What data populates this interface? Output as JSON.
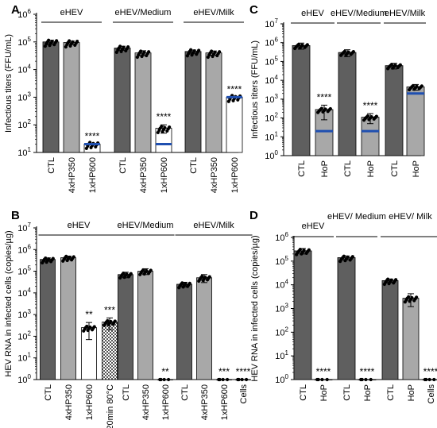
{
  "chart_data": [
    {
      "panel": "A",
      "type": "bar",
      "ylabel": "Infectious titers (FFU/mL)",
      "yscale": "log",
      "ylim": [
        10,
        1000000
      ],
      "yticks": [
        {
          "v": 10,
          "e": "1"
        },
        {
          "v": 100,
          "e": "2"
        },
        {
          "v": 1000,
          "e": "3"
        },
        {
          "v": 10000,
          "e": "4"
        },
        {
          "v": 100000,
          "e": "5"
        },
        {
          "v": 1000000,
          "e": "6"
        }
      ],
      "groups": [
        {
          "label": "eHEV",
          "bars": [
            {
              "category": "CTL",
              "value": 100000,
              "error": 15000,
              "fill": "#5f5f5f"
            },
            {
              "category": "4xHP350",
              "value": 95000,
              "error": 12000,
              "fill": "#a8a8a8"
            },
            {
              "category": "1xHP600",
              "value": 20,
              "fill": "#ffffff",
              "lod": 20,
              "sig": "****"
            }
          ]
        },
        {
          "label": "eHEV/Medium",
          "bars": [
            {
              "category": "CTL",
              "value": 60000,
              "error": 10000,
              "fill": "#5f5f5f"
            },
            {
              "category": "4xHP350",
              "value": 40000,
              "error": 8000,
              "fill": "#a8a8a8"
            },
            {
              "category": "1xHP600",
              "value": 75,
              "error": 25,
              "fill": "#ffffff",
              "lod": 20,
              "sig": "****"
            }
          ]
        },
        {
          "label": "eHEV/Milk",
          "bars": [
            {
              "category": "CTL",
              "value": 45000,
              "error": 6000,
              "fill": "#5f5f5f"
            },
            {
              "category": "4xHP350",
              "value": 40000,
              "error": 7000,
              "fill": "#a8a8a8"
            },
            {
              "category": "1xHP600",
              "value": 1000,
              "fill": "#ffffff",
              "lod": 1000,
              "sig": "****"
            }
          ]
        }
      ]
    },
    {
      "panel": "B",
      "type": "bar",
      "ylabel": "HEV RNA in infected cells (copies/µg)",
      "yscale": "log",
      "ylim": [
        1,
        10000000
      ],
      "yticks": [
        {
          "v": 1,
          "e": "0"
        },
        {
          "v": 10,
          "e": "1"
        },
        {
          "v": 100,
          "e": "2"
        },
        {
          "v": 1000,
          "e": "3"
        },
        {
          "v": 10000,
          "e": "4"
        },
        {
          "v": 100000,
          "e": "5"
        },
        {
          "v": 1000000,
          "e": "6"
        },
        {
          "v": 10000000,
          "e": "7"
        }
      ],
      "groups": [
        {
          "label": "eHEV",
          "bars": [
            {
              "category": "CTL",
              "value": 350000,
              "error": 60000,
              "fill": "#5f5f5f"
            },
            {
              "category": "4xHP350",
              "value": 420000,
              "error": 80000,
              "fill": "#a8a8a8"
            },
            {
              "category": "1xHP600",
              "value": 250,
              "error": 180,
              "fill": "#ffffff",
              "sig": "**"
            },
            {
              "category": "20min 80°C",
              "value": 450,
              "error": 250,
              "fill": "#e6e6e6",
              "pattern": "check",
              "sig": "***"
            }
          ]
        },
        {
          "label": "eHEV/Medium",
          "bars": [
            {
              "category": "CTL",
              "value": 70000,
              "error": 20000,
              "fill": "#5f5f5f"
            },
            {
              "category": "4xHP350",
              "value": 100000,
              "error": 30000,
              "fill": "#a8a8a8"
            },
            {
              "category": "1xHP600",
              "value": 1,
              "fill": "#ffffff",
              "sig": "**"
            }
          ]
        },
        {
          "label": "eHEV/Milk",
          "bars": [
            {
              "category": "CTL",
              "value": 25000,
              "error": 6000,
              "fill": "#5f5f5f"
            },
            {
              "category": "4xHP350",
              "value": 50000,
              "error": 20000,
              "fill": "#a8a8a8"
            },
            {
              "category": "1xHP600",
              "value": 1,
              "fill": "#ffffff",
              "sig": "***"
            },
            {
              "category": "Cells",
              "value": 1,
              "fill": "#ffffff",
              "sig": "****"
            }
          ]
        }
      ]
    },
    {
      "panel": "C",
      "type": "bar",
      "ylabel": "Infectious titers (FFU/mL)",
      "yscale": "log",
      "ylim": [
        1,
        10000000
      ],
      "yticks": [
        {
          "v": 1,
          "e": "0"
        },
        {
          "v": 10,
          "e": "1"
        },
        {
          "v": 100,
          "e": "2"
        },
        {
          "v": 1000,
          "e": "3"
        },
        {
          "v": 10000,
          "e": "4"
        },
        {
          "v": 100000,
          "e": "5"
        },
        {
          "v": 1000000,
          "e": "6"
        },
        {
          "v": 10000000,
          "e": "7"
        }
      ],
      "groups": [
        {
          "label": "eHEV",
          "bars": [
            {
              "category": "CTL",
              "value": 700000,
              "error": 250000,
              "fill": "#5f5f5f"
            },
            {
              "category": "HoP",
              "value": 280,
              "error": 200,
              "fill": "#a8a8a8",
              "lod": 20,
              "sig": "****"
            }
          ]
        },
        {
          "label": "eHEV/Medium",
          "bars": [
            {
              "category": "CTL",
              "value": 300000,
              "error": 120000,
              "fill": "#5f5f5f"
            },
            {
              "category": "HoP",
              "value": 110,
              "error": 60,
              "fill": "#a8a8a8",
              "lod": 20,
              "sig": "****"
            }
          ]
        },
        {
          "label": "eHEV/Milk",
          "bars": [
            {
              "category": "CTL",
              "value": 60000,
              "error": 20000,
              "fill": "#5f5f5f"
            },
            {
              "category": "HoP",
              "value": 4500,
              "error": 1500,
              "fill": "#a8a8a8",
              "lod": 2000
            }
          ]
        }
      ]
    },
    {
      "panel": "D",
      "type": "bar",
      "ylabel": "HEV RNA in infected cells (copies/µg)",
      "yscale": "log",
      "ylim": [
        1,
        1000000
      ],
      "yticks": [
        {
          "v": 1,
          "e": "0"
        },
        {
          "v": 10,
          "e": "1"
        },
        {
          "v": 100,
          "e": "2"
        },
        {
          "v": 1000,
          "e": "3"
        },
        {
          "v": 10000,
          "e": "4"
        },
        {
          "v": 100000,
          "e": "5"
        },
        {
          "v": 1000000,
          "e": "6"
        }
      ],
      "groups": [
        {
          "label": "eHEV",
          "bars": [
            {
              "category": "CTL",
              "value": 270000,
              "error": 70000,
              "fill": "#5f5f5f"
            },
            {
              "category": "HoP",
              "value": 1,
              "fill": "#a8a8a8",
              "sig": "****"
            }
          ]
        },
        {
          "label": "eHEV/ Medium",
          "bars": [
            {
              "category": "CTL",
              "value": 140000,
              "error": 25000,
              "fill": "#5f5f5f"
            },
            {
              "category": "HoP",
              "value": 1,
              "fill": "#a8a8a8",
              "sig": "****"
            }
          ]
        },
        {
          "label": "eHEV/ Milk",
          "bars": [
            {
              "category": "CTL",
              "value": 15000,
              "error": 2500,
              "fill": "#5f5f5f"
            },
            {
              "category": "HoP",
              "value": 2700,
              "error": 1500,
              "fill": "#a8a8a8"
            },
            {
              "category": "Cells",
              "value": 1,
              "fill": "#ffffff",
              "sig": "****"
            }
          ]
        }
      ]
    }
  ],
  "colors": {
    "dark": "#5f5f5f",
    "light": "#a8a8a8",
    "lod": "#1f4fb0",
    "axis": "#000000"
  }
}
